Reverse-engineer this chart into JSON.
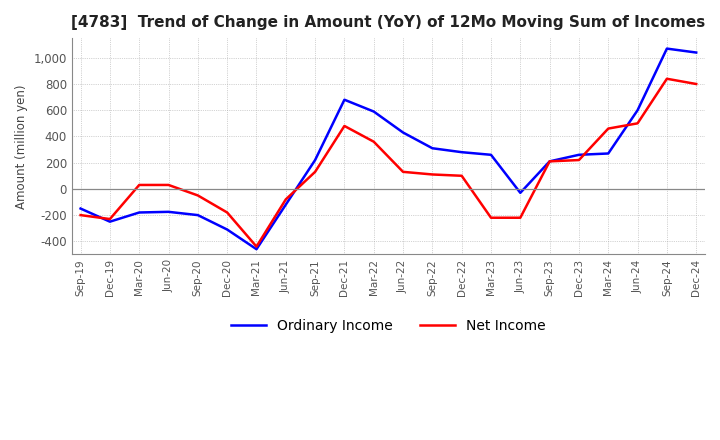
{
  "title": "[4783]  Trend of Change in Amount (YoY) of 12Mo Moving Sum of Incomes",
  "ylabel": "Amount (million yen)",
  "xlabel": "",
  "background_color": "#ffffff",
  "grid_color": "#aaaaaa",
  "x_labels": [
    "Sep-19",
    "Dec-19",
    "Mar-20",
    "Jun-20",
    "Sep-20",
    "Dec-20",
    "Mar-21",
    "Jun-21",
    "Sep-21",
    "Dec-21",
    "Mar-22",
    "Jun-22",
    "Sep-22",
    "Dec-22",
    "Mar-23",
    "Jun-23",
    "Sep-23",
    "Dec-23",
    "Mar-24",
    "Jun-24",
    "Sep-24",
    "Dec-24"
  ],
  "ordinary_income": [
    -150,
    -250,
    -180,
    -175,
    -200,
    -310,
    -460,
    -120,
    220,
    680,
    590,
    430,
    310,
    280,
    260,
    -30,
    210,
    260,
    270,
    600,
    1070,
    1040
  ],
  "net_income": [
    -200,
    -230,
    30,
    30,
    -50,
    -180,
    -440,
    -80,
    130,
    480,
    360,
    130,
    110,
    100,
    -220,
    -220,
    210,
    220,
    460,
    500,
    840,
    800
  ],
  "ordinary_color": "#0000ff",
  "net_color": "#ff0000",
  "ylim": [
    -500,
    1150
  ],
  "yticks": [
    -400,
    -200,
    0,
    200,
    400,
    600,
    800,
    1000
  ],
  "legend_labels": [
    "Ordinary Income",
    "Net Income"
  ],
  "line_width": 1.8
}
